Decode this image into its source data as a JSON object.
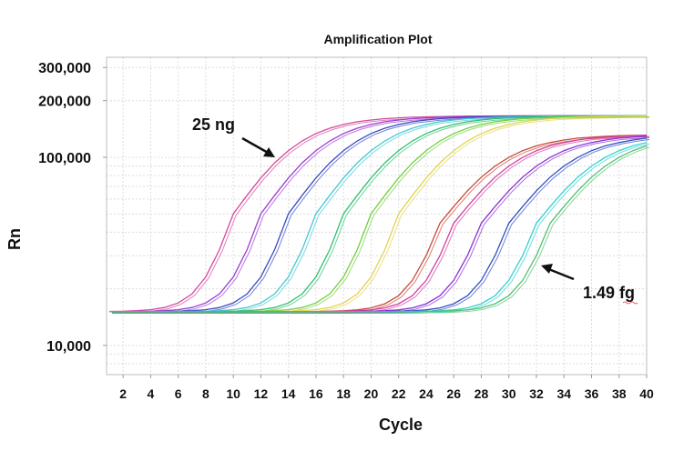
{
  "chart_data": {
    "type": "line",
    "title": "Amplification Plot",
    "xlabel": "Cycle",
    "ylabel": "Rn",
    "xlim": [
      0.8,
      40
    ],
    "ylim": [
      7000,
      340000
    ],
    "y_scale": "log",
    "grid": true,
    "x_ticks": [
      2,
      4,
      6,
      8,
      10,
      12,
      14,
      16,
      18,
      20,
      22,
      24,
      26,
      28,
      30,
      32,
      34,
      36,
      38,
      40
    ],
    "y_ticks": [
      {
        "value": 10000,
        "label": "10,000"
      },
      {
        "value": 100000,
        "label": "100,000"
      },
      {
        "value": 200000,
        "label": "200,000"
      },
      {
        "value": 300000,
        "label": "300,000"
      }
    ],
    "annotations": [
      {
        "text": "25 ng",
        "points_to_cycle": 12.3,
        "points_to_rn": 90000
      },
      {
        "text": "1.49 fg",
        "points_to_cycle": 32,
        "points_to_rn": 25000
      }
    ],
    "x": [
      1,
      2,
      3,
      4,
      5,
      6,
      7,
      8,
      9,
      10,
      11,
      12,
      13,
      14,
      15,
      16,
      17,
      18,
      19,
      20,
      21,
      22,
      23,
      24,
      25,
      26,
      27,
      28,
      29,
      30,
      31,
      32,
      33,
      34,
      35,
      36,
      37,
      38,
      39,
      40
    ],
    "series": [
      {
        "color": "#d24a9c",
        "values": [
          15170,
          15210,
          15310,
          15500,
          15920,
          16820,
          18780,
          23130,
          32340,
          50100,
          62800,
          77700,
          93400,
          108600,
          122100,
          133800,
          142700,
          149400,
          154500,
          157800,
          160500,
          162000,
          163300,
          164000,
          164400,
          165100,
          165500,
          165600,
          165800,
          166000,
          166000,
          166000,
          166000,
          166000,
          166000,
          166000,
          166000,
          166000,
          166000,
          166000
        ]
      },
      {
        "color": "#9b3fd2",
        "values": [
          15100,
          15100,
          15170,
          15210,
          15310,
          15500,
          15920,
          16820,
          18780,
          23130,
          32340,
          50100,
          62800,
          77700,
          93400,
          108600,
          122100,
          133800,
          142700,
          149400,
          154500,
          157800,
          160500,
          162000,
          163300,
          164000,
          164400,
          165100,
          165500,
          165600,
          165800,
          166000,
          166000,
          166000,
          166000,
          166000,
          166000,
          166000,
          166000,
          166000
        ]
      },
      {
        "color": "#3a4cc0",
        "values": [
          15100,
          15100,
          15100,
          15100,
          15170,
          15210,
          15310,
          15500,
          15920,
          16820,
          18780,
          23130,
          32340,
          50100,
          62800,
          77700,
          93400,
          108600,
          122100,
          133800,
          142700,
          149400,
          154500,
          157800,
          160500,
          162000,
          163300,
          164000,
          164400,
          165100,
          165500,
          165600,
          165800,
          166000,
          166000,
          166000,
          166000,
          166000,
          166000,
          166000
        ]
      },
      {
        "color": "#44c8d4",
        "values": [
          15100,
          15100,
          15100,
          15100,
          15100,
          15100,
          15170,
          15210,
          15310,
          15500,
          15920,
          16820,
          18780,
          23130,
          32340,
          50100,
          62800,
          77700,
          93400,
          108600,
          122100,
          133800,
          142700,
          149400,
          154500,
          157800,
          160500,
          162000,
          163300,
          164000,
          164400,
          165100,
          165500,
          165600,
          165800,
          166000,
          166000,
          166000,
          166000,
          166000
        ]
      },
      {
        "color": "#30bf6e",
        "values": [
          15100,
          15100,
          15100,
          15100,
          15100,
          15100,
          15100,
          15100,
          15170,
          15210,
          15310,
          15500,
          15920,
          16820,
          18780,
          23130,
          32340,
          50100,
          62800,
          77700,
          93400,
          108600,
          122100,
          133800,
          142700,
          149400,
          154500,
          157800,
          160500,
          162000,
          163300,
          164000,
          164400,
          165100,
          165500,
          165600,
          165800,
          166000,
          166000,
          166000
        ]
      },
      {
        "color": "#72cf3e",
        "values": [
          15100,
          15100,
          15100,
          15100,
          15100,
          15100,
          15100,
          15100,
          15100,
          15100,
          15170,
          15210,
          15310,
          15500,
          15920,
          16820,
          18780,
          23130,
          32340,
          50100,
          62800,
          77700,
          93400,
          108600,
          122100,
          133800,
          142700,
          149400,
          154500,
          157800,
          160500,
          162000,
          163300,
          164000,
          164400,
          165100,
          165500,
          165600,
          165800,
          166000
        ]
      },
      {
        "color": "#e2d352",
        "values": [
          15100,
          15100,
          15100,
          15100,
          15100,
          15100,
          15100,
          15100,
          15100,
          15100,
          15100,
          15100,
          15170,
          15210,
          15310,
          15500,
          15920,
          16820,
          18780,
          23130,
          32340,
          50100,
          62800,
          77700,
          93400,
          108600,
          122100,
          133800,
          142700,
          149400,
          154500,
          157800,
          160500,
          162000,
          163300,
          164000,
          164400,
          165100,
          165500,
          165600
        ]
      },
      {
        "color": "#c84a3a",
        "values": [
          15100,
          15100,
          15100,
          15100,
          15100,
          15100,
          15100,
          15100,
          15100,
          15100,
          15100,
          15100,
          15100,
          15100,
          15100,
          15160,
          15200,
          15290,
          15460,
          15840,
          16650,
          18390,
          22200,
          30060,
          44670,
          54770,
          66370,
          78430,
          89880,
          99930,
          108500,
          115000,
          119800,
          123500,
          126500,
          127900,
          129300,
          130200,
          130800,
          131200
        ]
      },
      {
        "color": "#d23fa2",
        "values": [
          15100,
          15100,
          15100,
          15100,
          15100,
          15100,
          15100,
          15100,
          15100,
          15100,
          15100,
          15100,
          15100,
          15100,
          15100,
          15100,
          15160,
          15200,
          15290,
          15460,
          15840,
          16650,
          18390,
          22200,
          30060,
          44670,
          54770,
          66370,
          78430,
          89880,
          99930,
          108500,
          115000,
          119800,
          123500,
          126500,
          127900,
          129300,
          130200,
          130800
        ]
      },
      {
        "color": "#8a32d2",
        "values": [
          15100,
          15100,
          15100,
          15100,
          15100,
          15100,
          15100,
          15100,
          15100,
          15100,
          15100,
          15100,
          15100,
          15100,
          15100,
          15100,
          15100,
          15100,
          15160,
          15200,
          15290,
          15460,
          15840,
          16650,
          18390,
          22200,
          30060,
          44670,
          54770,
          66370,
          78430,
          89880,
          99930,
          108500,
          115000,
          119800,
          123500,
          126500,
          127900,
          129300
        ]
      },
      {
        "color": "#3050c0",
        "values": [
          15100,
          15100,
          15100,
          15100,
          15100,
          15100,
          15100,
          15100,
          15100,
          15100,
          15100,
          15100,
          15100,
          15100,
          15100,
          15100,
          15100,
          15100,
          15100,
          15100,
          15160,
          15200,
          15290,
          15460,
          15840,
          16650,
          18390,
          22200,
          30060,
          44670,
          54770,
          66370,
          78430,
          89880,
          99930,
          108500,
          115000,
          119800,
          123500,
          126500
        ]
      },
      {
        "color": "#32d0d2",
        "values": [
          15100,
          15100,
          15100,
          15100,
          15100,
          15100,
          15100,
          15100,
          15100,
          15100,
          15100,
          15100,
          15100,
          15100,
          15100,
          15100,
          15100,
          15100,
          15100,
          15100,
          15100,
          15100,
          15160,
          15200,
          15290,
          15460,
          15840,
          16650,
          18390,
          22200,
          30060,
          44670,
          54770,
          66370,
          78430,
          89880,
          99930,
          108500,
          115000,
          119800
        ]
      },
      {
        "color": "#52c072",
        "values": [
          15100,
          15100,
          15100,
          15100,
          15100,
          15100,
          15100,
          15100,
          15100,
          15100,
          15100,
          15100,
          15100,
          15100,
          15100,
          15100,
          15100,
          15100,
          15100,
          15100,
          15100,
          15100,
          15100,
          15160,
          15200,
          15290,
          15460,
          15840,
          16650,
          18390,
          22200,
          30060,
          44670,
          54770,
          66370,
          78430,
          89880,
          99930,
          108500,
          115000
        ]
      }
    ]
  }
}
